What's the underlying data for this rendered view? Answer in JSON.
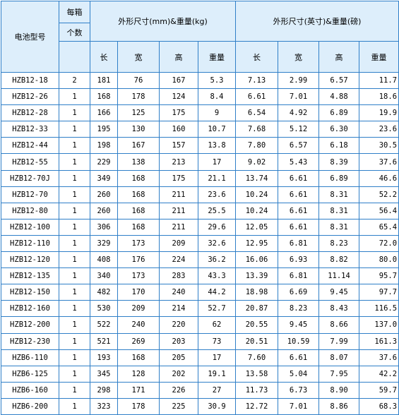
{
  "header": {
    "model": "电池型号",
    "per_box_line1": "每箱",
    "per_box_line2": "个数",
    "metric_group": "外形尺寸(mm)&重量(kg)",
    "imperial_group": "外形尺寸(英寸)&重量(磅)",
    "length": "长",
    "width": "宽",
    "height": "高",
    "weight": "重量"
  },
  "rows": [
    [
      "HZB12-18",
      "2",
      "181",
      "76",
      "167",
      "5.3",
      "7.13",
      "2.99",
      "6.57",
      "11.7"
    ],
    [
      "HZB12-26",
      "1",
      "168",
      "178",
      "124",
      "8.4",
      "6.61",
      "7.01",
      "4.88",
      "18.6"
    ],
    [
      "HZB12-28",
      "1",
      "166",
      "125",
      "175",
      "9",
      "6.54",
      "4.92",
      "6.89",
      "19.9"
    ],
    [
      "HZB12-33",
      "1",
      "195",
      "130",
      "160",
      "10.7",
      "7.68",
      "5.12",
      "6.30",
      "23.6"
    ],
    [
      "HZB12-44",
      "1",
      "198",
      "167",
      "157",
      "13.8",
      "7.80",
      "6.57",
      "6.18",
      "30.5"
    ],
    [
      "HZB12-55",
      "1",
      "229",
      "138",
      "213",
      "17",
      "9.02",
      "5.43",
      "8.39",
      "37.6"
    ],
    [
      "HZB12-70J",
      "1",
      "349",
      "168",
      "175",
      "21.1",
      "13.74",
      "6.61",
      "6.89",
      "46.6"
    ],
    [
      "HZB12-70",
      "1",
      "260",
      "168",
      "211",
      "23.6",
      "10.24",
      "6.61",
      "8.31",
      "52.2"
    ],
    [
      "HZB12-80",
      "1",
      "260",
      "168",
      "211",
      "25.5",
      "10.24",
      "6.61",
      "8.31",
      "56.4"
    ],
    [
      "HZB12-100",
      "1",
      "306",
      "168",
      "211",
      "29.6",
      "12.05",
      "6.61",
      "8.31",
      "65.4"
    ],
    [
      "HZB12-110",
      "1",
      "329",
      "173",
      "209",
      "32.6",
      "12.95",
      "6.81",
      "8.23",
      "72.0"
    ],
    [
      "HZB12-120",
      "1",
      "408",
      "176",
      "224",
      "36.2",
      "16.06",
      "6.93",
      "8.82",
      "80.0"
    ],
    [
      "HZB12-135",
      "1",
      "340",
      "173",
      "283",
      "43.3",
      "13.39",
      "6.81",
      "11.14",
      "95.7"
    ],
    [
      "HZB12-150",
      "1",
      "482",
      "170",
      "240",
      "44.2",
      "18.98",
      "6.69",
      "9.45",
      "97.7"
    ],
    [
      "HZB12-160",
      "1",
      "530",
      "209",
      "214",
      "52.7",
      "20.87",
      "8.23",
      "8.43",
      "116.5"
    ],
    [
      "HZB12-200",
      "1",
      "522",
      "240",
      "220",
      "62",
      "20.55",
      "9.45",
      "8.66",
      "137.0"
    ],
    [
      "HZB12-230",
      "1",
      "521",
      "269",
      "203",
      "73",
      "20.51",
      "10.59",
      "7.99",
      "161.3"
    ],
    [
      "HZB6-110",
      "1",
      "193",
      "168",
      "205",
      "17",
      "7.60",
      "6.61",
      "8.07",
      "37.6"
    ],
    [
      "HZB6-125",
      "1",
      "345",
      "128",
      "202",
      "19.1",
      "13.58",
      "5.04",
      "7.95",
      "42.2"
    ],
    [
      "HZB6-160",
      "1",
      "298",
      "171",
      "226",
      "27",
      "11.73",
      "6.73",
      "8.90",
      "59.7"
    ],
    [
      "HZB6-200",
      "1",
      "323",
      "178",
      "225",
      "30.9",
      "12.72",
      "7.01",
      "8.86",
      "68.3"
    ]
  ]
}
